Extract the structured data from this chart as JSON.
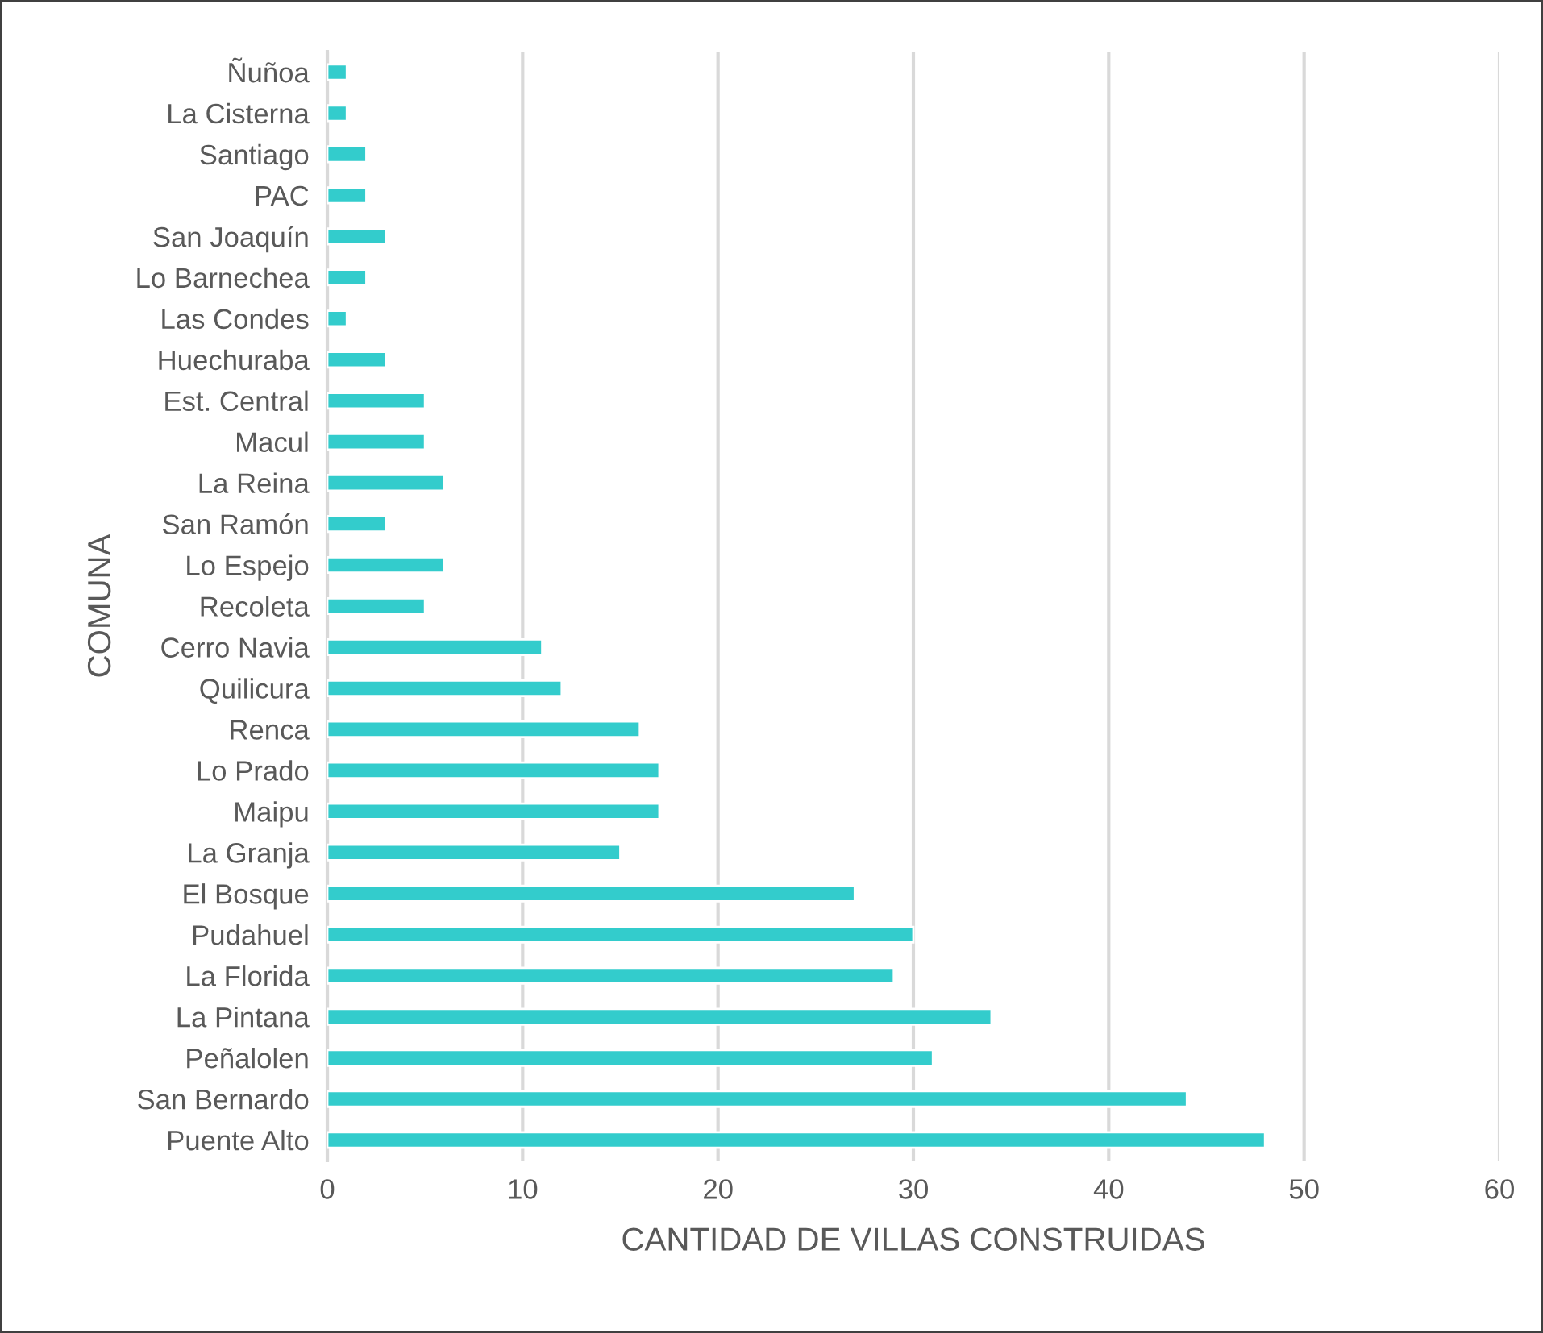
{
  "chart_data": {
    "type": "bar",
    "orientation": "horizontal",
    "xlabel": "CANTIDAD DE VILLAS CONSTRUIDAS",
    "ylabel": "COMUNA",
    "categories": [
      "Ñuñoa",
      "La Cisterna",
      "Santiago",
      "PAC",
      "San Joaquín",
      "Lo Barnechea",
      "Las Condes",
      "Huechuraba",
      "Est. Central",
      "Macul",
      "La Reina",
      "San Ramón",
      "Lo Espejo",
      "Recoleta",
      "Cerro Navia",
      "Quilicura",
      "Renca",
      "Lo Prado",
      "Maipu",
      "La Granja",
      "El Bosque",
      "Pudahuel",
      "La Florida",
      "La Pintana",
      "Peñalolen",
      "San Bernardo",
      "Puente Alto"
    ],
    "values": [
      1,
      1,
      2,
      2,
      3,
      2,
      1,
      3,
      5,
      5,
      6,
      3,
      6,
      5,
      11,
      12,
      16,
      17,
      17,
      15,
      27,
      30,
      29,
      34,
      31,
      44,
      48
    ],
    "color": "#33cccc",
    "xlim": [
      0,
      60
    ],
    "xticks": [
      0,
      10,
      20,
      30,
      40,
      50,
      60
    ],
    "grid": "x",
    "legend": false
  }
}
